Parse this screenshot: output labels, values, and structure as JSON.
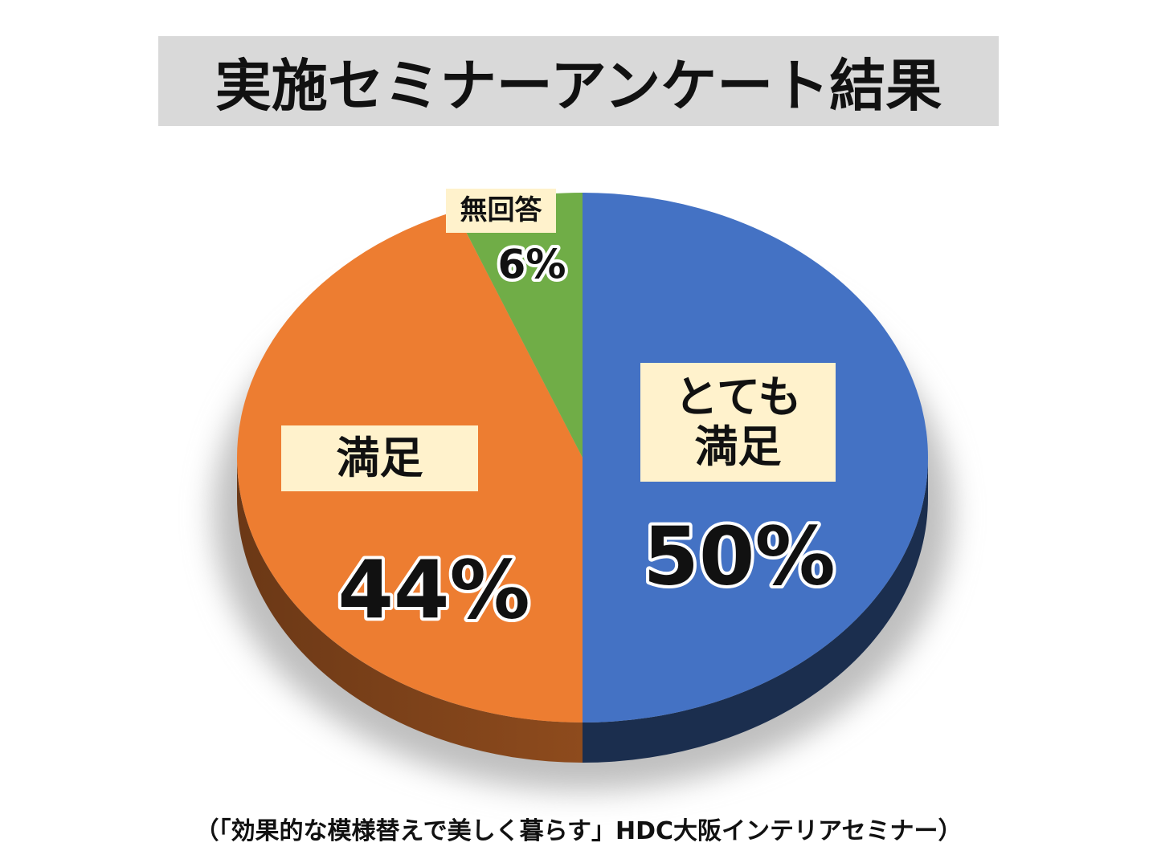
{
  "chart_data": {
    "type": "pie",
    "title": "実施セミナーアンケート結果",
    "footnote": "（「効果的な模様替えで美しく暮らす」HDC大阪インテリアセミナー）",
    "categories": [
      "とても満足",
      "満足",
      "無回答"
    ],
    "values": [
      50,
      44,
      6
    ],
    "value_labels": [
      "50%",
      "44%",
      "6%"
    ],
    "colors": [
      "#4472c4",
      "#ed7d31",
      "#70ad47"
    ]
  }
}
